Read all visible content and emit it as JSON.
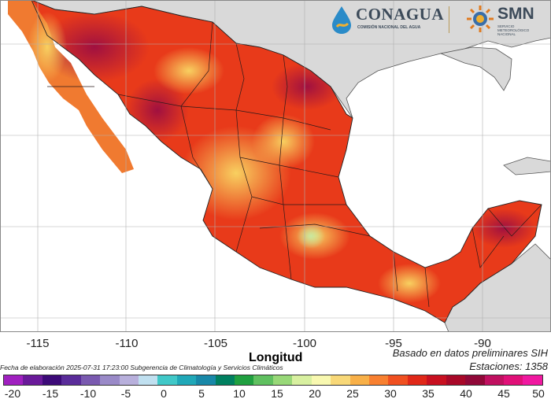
{
  "header": {
    "logo_conagua": "CONAGUA",
    "logo_conagua_sub": "COMISIÓN NACIONAL DEL AGUA",
    "logo_smn": "SMN",
    "logo_smn_sub": "SERVICIO METEOROLÓGICO NACIONAL"
  },
  "map": {
    "xlabel": "Longitud",
    "lon_ticks": [
      "-115",
      "-110",
      "-105",
      "-100",
      "-95",
      "-90"
    ],
    "lon_values": [
      -115,
      -110,
      -105,
      -100,
      -95,
      -90
    ],
    "colors": {
      "ocean": "#ffffff",
      "land_other": "#d9d9d9",
      "border": "#222222"
    }
  },
  "footer": {
    "fecha": "Fecha de elaboración 2025-07-31 17:23:00 Subgerencia de Climatología y Servicios Climáticos",
    "basado": "Basado en datos preliminares SIH",
    "estaciones": "Estaciones:  1358"
  },
  "colorbar": {
    "labels": [
      "-20",
      "-15",
      "-10",
      "-5",
      "0",
      "5",
      "10",
      "15",
      "20",
      "25",
      "30",
      "35",
      "40",
      "45",
      "50"
    ],
    "colors": [
      "#a020c0",
      "#6a1a9a",
      "#3c0a78",
      "#5a2c9a",
      "#7a5ab0",
      "#9a8ac8",
      "#b8b0dc",
      "#c0e0f0",
      "#40c8c8",
      "#20a8b8",
      "#1888a8",
      "#008060",
      "#20a040",
      "#60c060",
      "#98d878",
      "#d8f0a0",
      "#f8f8b0",
      "#f8d878",
      "#f8b048",
      "#f88030",
      "#f05020",
      "#e02818",
      "#c81020",
      "#a80828",
      "#900838",
      "#c01060",
      "#e01078",
      "#f018a0"
    ]
  }
}
